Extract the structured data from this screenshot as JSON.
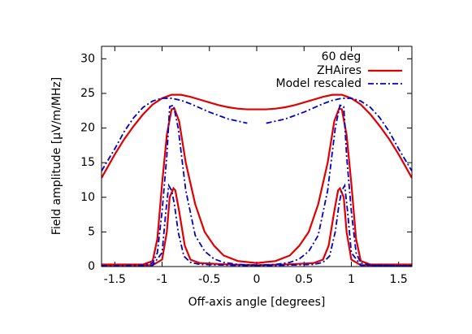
{
  "chart_data": {
    "type": "line",
    "legend_title": "60 deg",
    "xlabel": "Off-axis angle [degrees]",
    "ylabel": "Field amplitude [μV/m/MHz]",
    "xlim": [
      -1.64,
      1.64
    ],
    "ylim": [
      0,
      31.8
    ],
    "xticks": [
      -1.5,
      -1,
      -0.5,
      0,
      0.5,
      1,
      1.5
    ],
    "yticks": [
      0,
      5,
      10,
      15,
      20,
      25,
      30
    ],
    "legend_position": "top-right",
    "series": [
      {
        "name": "ZHAires",
        "color": "#e00000",
        "dash": "solid",
        "lines": [
          {
            "x": [
              -1.64,
              -1.5,
              -1.4,
              -1.3,
              -1.2,
              -1.1,
              -1,
              -0.9,
              -0.8,
              -0.7,
              -0.6,
              -0.5,
              -0.4,
              -0.3,
              -0.2,
              -0.1,
              0,
              0.1,
              0.2,
              0.3,
              0.4,
              0.5,
              0.6,
              0.7,
              0.8,
              0.9,
              1,
              1.1,
              1.2,
              1.3,
              1.4,
              1.5,
              1.64
            ],
            "values": [
              12.8,
              16.2,
              18.4,
              20.3,
              22,
              23.4,
              24.3,
              24.8,
              24.8,
              24.5,
              24.1,
              23.7,
              23.3,
              23,
              22.8,
              22.7,
              22.7,
              22.7,
              22.8,
              23,
              23.3,
              23.7,
              24.1,
              24.5,
              24.8,
              24.8,
              24.3,
              23.4,
              22,
              20.3,
              18.4,
              16.2,
              12.8
            ]
          },
          {
            "x": [
              -1.64,
              -1.2,
              -1.1,
              -1.05,
              -1,
              -0.95,
              -0.9,
              -0.87,
              -0.82,
              -0.75,
              -0.65,
              -0.55,
              -0.45,
              -0.35,
              -0.2,
              0,
              0.2,
              0.35,
              0.45,
              0.55,
              0.65,
              0.75,
              0.82,
              0.87,
              0.9,
              0.95,
              1,
              1.05,
              1.1,
              1.2,
              1.64
            ],
            "values": [
              0.3,
              0.3,
              0.8,
              4,
              12,
              19,
              22.7,
              22.8,
              21,
              15,
              9,
              5,
              3,
              1.6,
              0.8,
              0.5,
              0.8,
              1.6,
              3,
              5,
              9,
              15,
              21,
              22.8,
              22.7,
              19,
              12,
              4,
              0.8,
              0.3,
              0.3
            ]
          },
          {
            "x": [
              -1.64,
              -1.1,
              -1,
              -0.95,
              -0.92,
              -0.88,
              -0.86,
              -0.82,
              -0.76,
              -0.7,
              -0.6,
              -0.3,
              0,
              0.3,
              0.6,
              0.7,
              0.76,
              0.82,
              0.86,
              0.88,
              0.92,
              0.95,
              1,
              1.1,
              1.64
            ],
            "values": [
              0.2,
              0.2,
              1,
              5,
              10,
              11.3,
              11,
              8,
              3,
              1,
              0.5,
              0.3,
              0.2,
              0.3,
              0.5,
              1,
              3,
              8,
              11,
              11.3,
              10,
              5,
              1,
              0.2,
              0.2
            ]
          }
        ]
      },
      {
        "name": "Model rescaled",
        "color": "#0000c8",
        "dash": "dashdot",
        "lines": [
          {
            "x": [
              -1.64,
              -1.5,
              -1.4,
              -1.3,
              -1.2,
              -1.1,
              -1,
              -0.9,
              -0.8,
              -0.7,
              -0.6,
              -0.5,
              -0.4,
              -0.3,
              -0.2,
              -0.1,
              0,
              0.1,
              0.2,
              0.3,
              0.4,
              0.5,
              0.6,
              0.7,
              0.8,
              0.9,
              1,
              1.1,
              1.2,
              1.3,
              1.4,
              1.5,
              1.64
            ],
            "values": [
              13.8,
              17,
              19.5,
              21.5,
              23,
              23.9,
              24.3,
              24.3,
              24,
              23.5,
              22.9,
              22.3,
              21.8,
              21.3,
              21,
              20.7,
              null,
              20.7,
              21,
              21.3,
              21.8,
              22.3,
              22.9,
              23.5,
              24,
              24.3,
              24.3,
              23.9,
              23,
              21.5,
              19.5,
              17,
              13.8
            ]
          },
          {
            "x": [
              -1.64,
              -1.2,
              -1.1,
              -1.05,
              -1,
              -0.95,
              -0.92,
              -0.88,
              -0.83,
              -0.75,
              -0.65,
              -0.55,
              -0.45,
              -0.35,
              -0.2,
              0,
              0.2,
              0.35,
              0.45,
              0.55,
              0.65,
              0.75,
              0.83,
              0.88,
              0.92,
              0.95,
              1,
              1.05,
              1.1,
              1.2,
              1.64
            ],
            "values": [
              0.1,
              0.2,
              0.5,
              2,
              8,
              16,
              23.1,
              23.3,
              20,
              11,
              4.5,
              2.2,
              1.1,
              0.6,
              0.3,
              0.2,
              0.3,
              0.6,
              1.1,
              2.2,
              4.5,
              11,
              20,
              23.3,
              23.1,
              16,
              8,
              2,
              0.5,
              0.2,
              0.1
            ]
          },
          {
            "x": [
              -1.64,
              -1.1,
              -1,
              -0.96,
              -0.93,
              -0.9,
              -0.87,
              -0.83,
              -0.77,
              -0.7,
              -0.6,
              -0.3,
              0,
              0.3,
              0.6,
              0.7,
              0.77,
              0.83,
              0.87,
              0.9,
              0.93,
              0.96,
              1,
              1.1,
              1.64
            ],
            "values": [
              0.1,
              0.2,
              2,
              8,
              11.7,
              11,
              9,
              5,
              1.5,
              0.6,
              0.3,
              0.2,
              0.1,
              0.2,
              0.3,
              0.6,
              1.5,
              5,
              9,
              11,
              11.7,
              8,
              2,
              0.2,
              0.1
            ]
          }
        ]
      }
    ]
  }
}
